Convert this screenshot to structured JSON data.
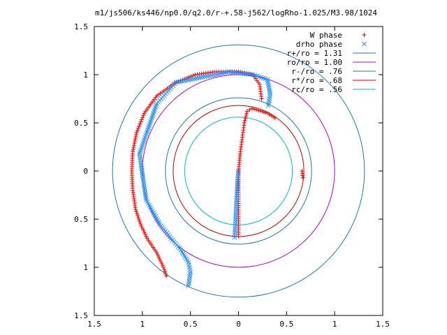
{
  "chart_data": {
    "type": "scatter",
    "title": "m1/js506/ks446/np0.0/q2.0/r-+.58-j562/logRho-1.025/M3.98/1024",
    "xlim": [
      -1.5,
      1.5
    ],
    "ylim": [
      -1.5,
      1.5
    ],
    "x_tick_values": [
      -1.5,
      -1,
      -0.5,
      0,
      0.5,
      1,
      1.5
    ],
    "x_tick_labels": [
      "1.5",
      "1",
      "0.5",
      "0",
      "0.5",
      "1",
      "1.5"
    ],
    "y_tick_values": [
      1.5,
      1,
      0.5,
      0,
      -0.5,
      -1,
      -1.5
    ],
    "y_tick_labels": [
      "1.5",
      "1",
      "0.5",
      "0",
      "0.5",
      "1",
      "1.5"
    ],
    "grid": false,
    "legend_position": "top-right",
    "circles": [
      {
        "name": "r+/ro = 1.31",
        "radius": 1.31,
        "color": "#1f77b4"
      },
      {
        "name": "ro/ro = 1.00",
        "radius": 1.0,
        "color": "#b000c8"
      },
      {
        "name": "r-/ro = .76",
        "radius": 0.76,
        "color": "#1f77b4"
      },
      {
        "name": "r*/ro = .68",
        "radius": 0.68,
        "color": "#c00000"
      },
      {
        "name": "rc/ro = .56",
        "radius": 0.56,
        "color": "#00c0c0"
      }
    ],
    "series": [
      {
        "name": "W phase",
        "marker": "plus",
        "color": "#ff0000",
        "segments": [
          {
            "points": [
              [
                -0.75,
                -1.09
              ],
              [
                -0.78,
                -1.0
              ],
              [
                -0.85,
                -0.85
              ],
              [
                -0.95,
                -0.7
              ],
              [
                -1.02,
                -0.55
              ],
              [
                -1.07,
                -0.4
              ],
              [
                -1.1,
                -0.2
              ],
              [
                -1.11,
                0.0
              ],
              [
                -1.1,
                0.2
              ],
              [
                -1.06,
                0.4
              ],
              [
                -0.98,
                0.6
              ],
              [
                -0.85,
                0.78
              ],
              [
                -0.65,
                0.92
              ],
              [
                -0.45,
                1.0
              ],
              [
                -0.25,
                1.03
              ],
              [
                0.0,
                1.03
              ],
              [
                0.15,
                1.0
              ],
              [
                0.22,
                0.9
              ],
              [
                0.24,
                0.75
              ]
            ],
            "density": 1
          },
          {
            "points": [
              [
                0.0,
                -0.68
              ],
              [
                0.0,
                -0.45
              ],
              [
                0.0,
                -0.2
              ],
              [
                0.0,
                0.0
              ],
              [
                0.02,
                0.2
              ],
              [
                0.04,
                0.35
              ],
              [
                0.06,
                0.5
              ],
              [
                0.09,
                0.62
              ],
              [
                0.14,
                0.65
              ],
              [
                0.3,
                0.6
              ],
              [
                0.38,
                0.55
              ]
            ],
            "density": 1
          },
          {
            "points": [
              [
                0.67,
                -0.07
              ],
              [
                0.66,
                0.0
              ]
            ],
            "density": 1
          }
        ]
      },
      {
        "name": "drho phase",
        "marker": "x",
        "color": "#1e8fff",
        "segments": [
          {
            "points": [
              [
                -0.52,
                -1.19
              ],
              [
                -0.5,
                -1.05
              ],
              [
                -0.52,
                -0.95
              ],
              [
                -0.6,
                -0.82
              ],
              [
                -0.7,
                -0.7
              ],
              [
                -0.82,
                -0.55
              ],
              [
                -0.96,
                -0.3
              ],
              [
                -1.03,
                0.18
              ],
              [
                -0.85,
                0.7
              ],
              [
                -0.65,
                0.92
              ],
              [
                -0.35,
                0.98
              ],
              [
                -0.1,
                1.03
              ],
              [
                0.15,
                1.0
              ],
              [
                0.3,
                0.95
              ],
              [
                0.33,
                0.8
              ],
              [
                0.31,
                0.68
              ]
            ],
            "density": 1
          },
          {
            "points": [
              [
                -0.04,
                -0.69
              ],
              [
                -0.03,
                -0.5
              ],
              [
                -0.02,
                -0.3
              ],
              [
                -0.01,
                -0.1
              ],
              [
                0.0,
                0.0
              ]
            ],
            "density": 1
          }
        ]
      }
    ]
  }
}
